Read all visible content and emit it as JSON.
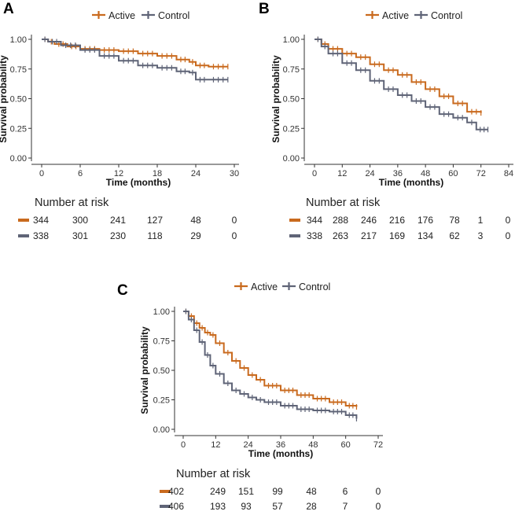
{
  "colors": {
    "active": "#c96a1e",
    "control": "#5f6477"
  },
  "chart_data": [
    {
      "panel": "A",
      "type": "line",
      "ylabel": "Survival probability",
      "xlabel": "Time (months)",
      "xlim": [
        0,
        30
      ],
      "ylim": [
        0,
        1
      ],
      "xticks": [
        0,
        6,
        12,
        18,
        24,
        30
      ],
      "yticks": [
        "0.00",
        "0.25",
        "0.50",
        "0.75",
        "1.00"
      ],
      "legend": [
        "Active",
        "Control"
      ],
      "series": [
        {
          "name": "Active",
          "x": [
            0,
            1,
            2,
            4,
            6,
            9,
            12,
            15,
            18,
            21,
            23,
            24,
            26,
            29
          ],
          "y": [
            1.0,
            0.98,
            0.96,
            0.94,
            0.92,
            0.91,
            0.9,
            0.88,
            0.86,
            0.83,
            0.81,
            0.78,
            0.77,
            0.77
          ]
        },
        {
          "name": "Control",
          "x": [
            0,
            1,
            3,
            6,
            9,
            12,
            15,
            18,
            21,
            23,
            24,
            26,
            29
          ],
          "y": [
            1.0,
            0.98,
            0.95,
            0.91,
            0.86,
            0.82,
            0.78,
            0.76,
            0.73,
            0.72,
            0.66,
            0.66,
            0.66
          ]
        }
      ],
      "risk_table": {
        "title": "Number at risk",
        "rows": [
          {
            "name": "Active",
            "values": [
              "344",
              "300",
              "241",
              "127",
              "48",
              "0"
            ]
          },
          {
            "name": "Control",
            "values": [
              "338",
              "301",
              "230",
              "118",
              "29",
              "0"
            ]
          }
        ]
      }
    },
    {
      "panel": "B",
      "type": "line",
      "ylabel": "Survival probability",
      "xlabel": "Time (months)",
      "xlim": [
        0,
        84
      ],
      "ylim": [
        0,
        1
      ],
      "xticks": [
        0,
        12,
        24,
        36,
        48,
        60,
        72,
        84
      ],
      "yticks": [
        "0.00",
        "0.25",
        "0.50",
        "0.75",
        "1.00"
      ],
      "legend": [
        "Active",
        "Control"
      ],
      "series": [
        {
          "name": "Active",
          "x": [
            0,
            3,
            6,
            12,
            18,
            24,
            30,
            36,
            42,
            48,
            54,
            60,
            66,
            72
          ],
          "y": [
            1.0,
            0.96,
            0.92,
            0.88,
            0.85,
            0.79,
            0.74,
            0.7,
            0.64,
            0.58,
            0.52,
            0.46,
            0.39,
            0.38
          ]
        },
        {
          "name": "Control",
          "x": [
            0,
            3,
            6,
            12,
            18,
            24,
            30,
            36,
            42,
            48,
            54,
            60,
            66,
            70,
            75
          ],
          "y": [
            1.0,
            0.94,
            0.88,
            0.8,
            0.74,
            0.65,
            0.58,
            0.53,
            0.48,
            0.43,
            0.37,
            0.34,
            0.3,
            0.24,
            0.24
          ]
        }
      ],
      "risk_table": {
        "title": "Number at risk",
        "rows": [
          {
            "name": "Active",
            "values": [
              "344",
              "288",
              "246",
              "216",
              "176",
              "78",
              "1",
              "0"
            ]
          },
          {
            "name": "Control",
            "values": [
              "338",
              "263",
              "217",
              "169",
              "134",
              "62",
              "3",
              "0"
            ]
          }
        ]
      }
    },
    {
      "panel": "C",
      "type": "line",
      "ylabel": "Survival probability",
      "xlabel": "Time (months)",
      "xlim": [
        0,
        72
      ],
      "ylim": [
        0,
        1
      ],
      "xticks": [
        0,
        12,
        24,
        36,
        48,
        60,
        72
      ],
      "yticks": [
        "0.00",
        "0.25",
        "0.50",
        "0.75",
        "1.00"
      ],
      "legend": [
        "Active",
        "Control"
      ],
      "series": [
        {
          "name": "Active",
          "x": [
            0,
            2,
            4,
            6,
            8,
            10,
            12,
            15,
            18,
            21,
            24,
            27,
            30,
            36,
            42,
            48,
            54,
            60,
            64
          ],
          "y": [
            1.0,
            0.96,
            0.9,
            0.86,
            0.82,
            0.8,
            0.73,
            0.65,
            0.58,
            0.52,
            0.46,
            0.42,
            0.37,
            0.33,
            0.29,
            0.26,
            0.23,
            0.2,
            0.19
          ]
        },
        {
          "name": "Control",
          "x": [
            0,
            2,
            4,
            6,
            8,
            10,
            12,
            15,
            18,
            21,
            24,
            27,
            30,
            36,
            42,
            48,
            54,
            60,
            64
          ],
          "y": [
            1.0,
            0.93,
            0.84,
            0.74,
            0.63,
            0.54,
            0.47,
            0.39,
            0.33,
            0.3,
            0.27,
            0.25,
            0.23,
            0.2,
            0.17,
            0.16,
            0.15,
            0.12,
            0.09
          ]
        }
      ],
      "risk_table": {
        "title": "Number at risk",
        "rows": [
          {
            "name": "Active",
            "values": [
              "402",
              "249",
              "151",
              "99",
              "48",
              "6",
              "0"
            ]
          },
          {
            "name": "Control",
            "values": [
              "406",
              "193",
              "93",
              "57",
              "28",
              "7",
              "0"
            ]
          }
        ]
      }
    }
  ]
}
